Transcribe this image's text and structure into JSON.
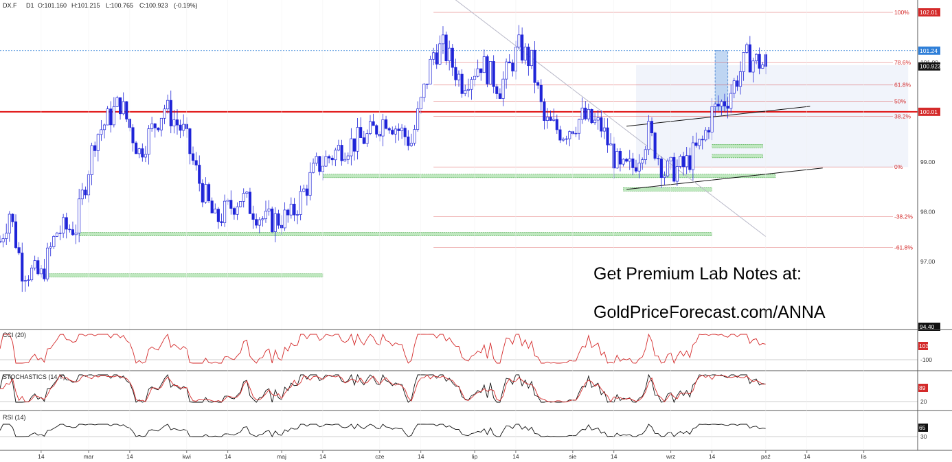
{
  "header": {
    "symbol": "DX.F",
    "interval": "D1",
    "open": "O:101.160",
    "high": "H:101.215",
    "low": "L:100.765",
    "close": "C:100.923",
    "change": "(-0.19%)"
  },
  "promo": {
    "line1": "Get Premium Lab Notes at:",
    "line2": "GoldPriceForecast.com/ANNA"
  },
  "price_axis": {
    "ticks": [
      {
        "value": 102.01,
        "label": "102.01",
        "badge_color": "#d42a2a"
      },
      {
        "value": 101.24,
        "label": "101.24",
        "badge_color": "#2f7fd8"
      },
      {
        "value": 101.0,
        "label": "101.00",
        "badge_color": ""
      },
      {
        "value": 100.923,
        "label": "100.923",
        "badge_color": "#111111"
      },
      {
        "value": 100.01,
        "label": "100.01",
        "badge_color": "#d42a2a"
      },
      {
        "value": 99.0,
        "label": "99.00",
        "badge_color": ""
      },
      {
        "value": 98.0,
        "label": "98.00",
        "badge_color": ""
      },
      {
        "value": 97.0,
        "label": "97.00",
        "badge_color": ""
      },
      {
        "value": 94.4,
        "label": "94.40",
        "badge_color": "#111111"
      }
    ]
  },
  "time_axis": {
    "ticks": [
      {
        "day": 13,
        "label": "14"
      },
      {
        "day": 28,
        "label": "mar"
      },
      {
        "day": 41,
        "label": "14"
      },
      {
        "day": 59,
        "label": "kwi"
      },
      {
        "day": 72,
        "label": "14"
      },
      {
        "day": 89,
        "label": "maj"
      },
      {
        "day": 102,
        "label": "14"
      },
      {
        "day": 120,
        "label": "cze"
      },
      {
        "day": 133,
        "label": "14"
      },
      {
        "day": 150,
        "label": "lip"
      },
      {
        "day": 163,
        "label": "14"
      },
      {
        "day": 181,
        "label": "sie"
      },
      {
        "day": 194,
        "label": "14"
      },
      {
        "day": 212,
        "label": "wrz"
      },
      {
        "day": 225,
        "label": "14"
      },
      {
        "day": 242,
        "label": "paź"
      },
      {
        "day": 255,
        "label": "14"
      },
      {
        "day": 273,
        "label": "lis"
      }
    ]
  },
  "fibonacci": {
    "levels": [
      {
        "label": "100%",
        "value": 102.01
      },
      {
        "label": "78.6%",
        "value": 101.0
      },
      {
        "label": "61.8%",
        "value": 100.55
      },
      {
        "label": "50%",
        "value": 100.22
      },
      {
        "label": "38.2%",
        "value": 99.92
      },
      {
        "label": "0%",
        "value": 98.9
      },
      {
        "label": "-38.2%",
        "value": 97.9
      },
      {
        "label": "-61.8%",
        "value": 97.28
      }
    ],
    "color": "#d42a2a"
  },
  "horizontal_lines": {
    "resistance": {
      "value": 100.01,
      "color": "#e01010"
    },
    "dotted_blue": {
      "value": 101.24,
      "color": "#2f7fd8"
    }
  },
  "support_zones": [
    {
      "from_day": 102,
      "to_day": 245,
      "value": 98.72
    },
    {
      "from_day": 25,
      "to_day": 225,
      "value": 97.55
    },
    {
      "from_day": 14,
      "to_day": 102,
      "value": 96.72
    },
    {
      "from_day": 197,
      "to_day": 225,
      "value": 98.45
    },
    {
      "from_day": 225,
      "to_day": 241,
      "value": 99.32
    },
    {
      "from_day": 225,
      "to_day": 241,
      "value": 99.12
    }
  ],
  "trendlines": [
    {
      "from": [
        198,
        99.72
      ],
      "to": [
        256,
        100.12
      ],
      "color": "#111111"
    },
    {
      "from": [
        198,
        98.45
      ],
      "to": [
        260,
        98.88
      ],
      "color": "#111111"
    },
    {
      "from": [
        137,
        102.6
      ],
      "to": [
        242,
        97.5
      ],
      "color": "#b8b8c8"
    }
  ],
  "highlight_boxes": [
    {
      "from_day": 201,
      "to_day": 287,
      "top": 100.95,
      "bottom": 98.9,
      "color": "#e8ecf8"
    },
    {
      "from_day": 226,
      "to_day": 230,
      "top": 101.24,
      "bottom": 100.0,
      "color": "#a8c8ee"
    }
  ],
  "indicators": {
    "cci": {
      "title": "CCI (20)",
      "level_label": "-100",
      "last_label": "103",
      "last_color": "#d42a2a"
    },
    "stochastics": {
      "title": "STOCHASTICS (14,Y)",
      "level_label": "20",
      "last_label": "89",
      "last_color": "#d42a2a"
    },
    "rsi": {
      "title": "RSI (14)",
      "level_label": "30",
      "last_label": "65",
      "last_color": "#111111"
    }
  },
  "chart_data": {
    "type": "candlestick",
    "title": "",
    "symbol": "DX.F",
    "interval": "D1",
    "ylim": [
      94.4,
      102.3
    ],
    "candle_color": "#1f24d8",
    "anchors": [
      {
        "day": 0,
        "price": 97.4
      },
      {
        "day": 3,
        "price": 98.0
      },
      {
        "day": 7,
        "price": 96.85
      },
      {
        "day": 13,
        "price": 96.7
      },
      {
        "day": 18,
        "price": 97.6
      },
      {
        "day": 24,
        "price": 97.7
      },
      {
        "day": 30,
        "price": 99.5
      },
      {
        "day": 38,
        "price": 100.2
      },
      {
        "day": 44,
        "price": 99.2
      },
      {
        "day": 52,
        "price": 100.1
      },
      {
        "day": 58,
        "price": 99.6
      },
      {
        "day": 63,
        "price": 98.6
      },
      {
        "day": 68,
        "price": 97.8
      },
      {
        "day": 76,
        "price": 98.3
      },
      {
        "day": 84,
        "price": 97.8
      },
      {
        "day": 92,
        "price": 97.9
      },
      {
        "day": 100,
        "price": 98.9
      },
      {
        "day": 108,
        "price": 99.3
      },
      {
        "day": 116,
        "price": 99.5
      },
      {
        "day": 122,
        "price": 99.9
      },
      {
        "day": 130,
        "price": 99.4
      },
      {
        "day": 137,
        "price": 101.2
      },
      {
        "day": 140,
        "price": 101.3
      },
      {
        "day": 146,
        "price": 100.6
      },
      {
        "day": 152,
        "price": 101.0
      },
      {
        "day": 158,
        "price": 100.5
      },
      {
        "day": 164,
        "price": 101.3
      },
      {
        "day": 168,
        "price": 101.0
      },
      {
        "day": 172,
        "price": 99.8
      },
      {
        "day": 178,
        "price": 99.6
      },
      {
        "day": 184,
        "price": 99.9
      },
      {
        "day": 190,
        "price": 99.7
      },
      {
        "day": 196,
        "price": 98.8
      },
      {
        "day": 200,
        "price": 98.9
      },
      {
        "day": 205,
        "price": 99.6
      },
      {
        "day": 210,
        "price": 98.8
      },
      {
        "day": 216,
        "price": 98.9
      },
      {
        "day": 222,
        "price": 99.4
      },
      {
        "day": 225,
        "price": 100.0
      },
      {
        "day": 230,
        "price": 100.3
      },
      {
        "day": 236,
        "price": 101.1
      },
      {
        "day": 240,
        "price": 101.0
      },
      {
        "day": 242,
        "price": 100.92
      }
    ],
    "last_candle": {
      "open": 101.16,
      "high": 101.215,
      "low": 100.765,
      "close": 100.923
    }
  }
}
